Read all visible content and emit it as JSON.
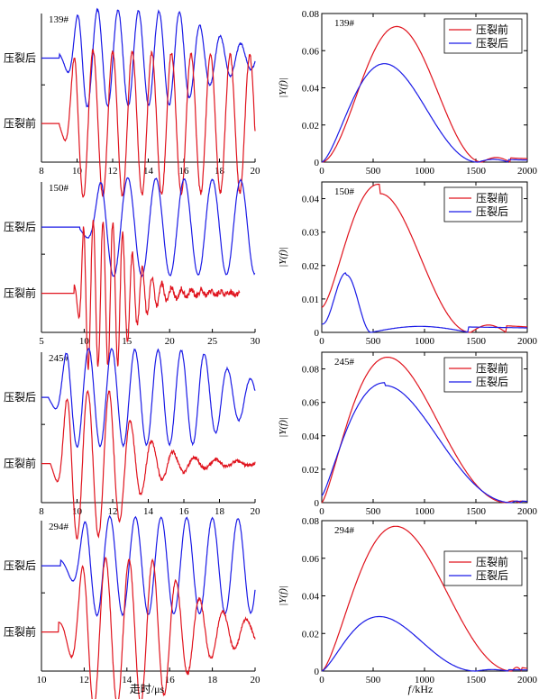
{
  "colors": {
    "before": "#e0141e",
    "after": "#1a1ae6",
    "axis": "#000000"
  },
  "labels": {
    "before": "压裂前",
    "after": "压裂后",
    "time_xlabel": "走时/μs",
    "freq_xlabel_italic": "f",
    "freq_xlabel_unit": "/kHz",
    "freq_ylabel": "|Y(f)|"
  },
  "chart_data": [
    {
      "type": "line",
      "panel": "139# waveform",
      "sample_label": "139#",
      "xlim": [
        8,
        20
      ],
      "xticks": [
        8,
        10,
        12,
        14,
        16,
        18,
        20
      ],
      "series": [
        {
          "name": "压裂后",
          "onset": 9.0,
          "peak_t": 10.0,
          "period": 1.15,
          "decay": 1.6,
          "amp": 1.0,
          "noise": 0.05
        },
        {
          "name": "压裂前",
          "onset": 9.0,
          "peak_t": 9.8,
          "period": 1.1,
          "decay": 2.0,
          "amp": 1.0,
          "noise": 0.07
        }
      ]
    },
    {
      "type": "line",
      "panel": "139# spectrum",
      "sample_label": "139#",
      "xlim": [
        0,
        2000
      ],
      "ylim": [
        0,
        0.08
      ],
      "xticks": [
        0,
        500,
        1000,
        1500,
        2000
      ],
      "yticks": [
        0,
        0.02,
        0.04,
        0.06,
        0.08
      ],
      "legend": "top-right",
      "legend_order": [
        "压裂前",
        "压裂后"
      ],
      "series": [
        {
          "name": "压裂前",
          "peak_x": 730,
          "peak_y": 0.073,
          "zero_x": 1560,
          "tail_y": 0.0025
        },
        {
          "name": "压裂后",
          "peak_x": 610,
          "peak_y": 0.053,
          "zero_x": 1520,
          "tail_y": 0.0015
        }
      ]
    },
    {
      "type": "line",
      "panel": "150# waveform",
      "sample_label": "150#",
      "xlim": [
        5,
        30
      ],
      "xticks": [
        5,
        10,
        15,
        20,
        25,
        30
      ],
      "series": [
        {
          "name": "压裂后",
          "onset": 9.5,
          "peak_t": 11.8,
          "period": 3.3,
          "decay": 5.0,
          "amp": 1.0,
          "noise": 0.03
        },
        {
          "name": "压裂前",
          "onset": 8.8,
          "peak_t": 9.9,
          "period": 1.15,
          "decay": 1.4,
          "amp": 1.0,
          "noise": 0.1,
          "end_t": 28.2
        }
      ]
    },
    {
      "type": "line",
      "panel": "150# spectrum",
      "sample_label": "150#",
      "xlim": [
        0,
        2000
      ],
      "ylim": [
        0,
        0.045
      ],
      "xticks": [
        0,
        500,
        1000,
        1500,
        2000
      ],
      "yticks": [
        0,
        0.01,
        0.02,
        0.03,
        0.04
      ],
      "legend": "top-right",
      "legend_order": [
        "压裂前",
        "压裂后"
      ],
      "series": [
        {
          "name": "压裂前",
          "peak_x": 570,
          "peak_y": 0.0415,
          "zero_x": 1450,
          "tail_y": 0.0022,
          "start_y": 0.0075
        },
        {
          "name": "压裂后",
          "peak_x": 240,
          "peak_y": 0.0172,
          "zero_x": 480,
          "tail_y": 0.0018,
          "start_y": 0.0025
        }
      ]
    },
    {
      "type": "line",
      "panel": "245# waveform",
      "sample_label": "245#",
      "xlim": [
        8,
        20
      ],
      "xticks": [
        8,
        10,
        12,
        14,
        16,
        18,
        20
      ],
      "series": [
        {
          "name": "压裂后",
          "onset": 8.4,
          "peak_t": 9.35,
          "period": 1.3,
          "decay": 1.8,
          "amp": 1.0,
          "noise": 0.04
        },
        {
          "name": "压裂前",
          "onset": 8.5,
          "peak_t": 9.4,
          "period": 1.2,
          "decay": 1.0,
          "amp": 1.0,
          "noise": 0.06
        }
      ]
    },
    {
      "type": "line",
      "panel": "245# spectrum",
      "sample_label": "245#",
      "xlim": [
        0,
        2000
      ],
      "ylim": [
        0,
        0.09
      ],
      "xticks": [
        0,
        500,
        1000,
        1500,
        2000
      ],
      "yticks": [
        0,
        0.02,
        0.04,
        0.06,
        0.08
      ],
      "legend": "top-right",
      "legend_order": [
        "压裂前",
        "压裂后"
      ],
      "series": [
        {
          "name": "压裂前",
          "peak_x": 640,
          "peak_y": 0.087,
          "zero_x": 1800,
          "tail_y": 0.001
        },
        {
          "name": "压裂后",
          "peak_x": 620,
          "peak_y": 0.07,
          "zero_x": 1850,
          "tail_y": 0.001,
          "start_y": 0.004
        }
      ]
    },
    {
      "type": "line",
      "panel": "294# waveform",
      "sample_label": "294#",
      "xlim": [
        10,
        20
      ],
      "xticks": [
        10,
        12,
        14,
        16,
        18,
        20
      ],
      "series": [
        {
          "name": "压裂后",
          "onset": 10.9,
          "peak_t": 12.0,
          "period": 1.2,
          "decay": 2.5,
          "amp": 1.0,
          "noise": 0.03
        },
        {
          "name": "压裂前",
          "onset": 10.8,
          "peak_t": 11.9,
          "period": 1.1,
          "decay": 1.3,
          "amp": 1.0,
          "noise": 0.05
        }
      ]
    },
    {
      "type": "line",
      "panel": "294# spectrum",
      "sample_label": "294#",
      "xlim": [
        0,
        2000
      ],
      "ylim": [
        0,
        0.08
      ],
      "xticks": [
        0,
        500,
        1000,
        1500,
        2000
      ],
      "yticks": [
        0,
        0.02,
        0.04,
        0.06,
        0.08
      ],
      "legend": "right",
      "legend_order": [
        "压裂前",
        "压裂后"
      ],
      "series": [
        {
          "name": "压裂前",
          "peak_x": 720,
          "peak_y": 0.077,
          "zero_x": 1850,
          "tail_y": 0.002
        },
        {
          "name": "压裂后",
          "peak_x": 560,
          "peak_y": 0.029,
          "zero_x": 1500,
          "tail_y": 0.0008
        }
      ]
    }
  ]
}
